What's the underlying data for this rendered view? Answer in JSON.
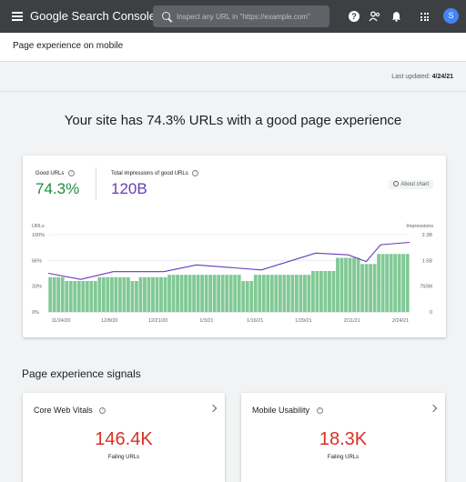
{
  "topbar": {
    "app_title": "Google Search Console",
    "search_placeholder": "Inspect any URL in \"https://example.com\"",
    "avatar_initial": "S",
    "icons": [
      "menu-icon",
      "search-icon",
      "help-icon",
      "users-icon",
      "bell-icon",
      "apps-icon"
    ]
  },
  "page": {
    "title": "Page experience on mobile",
    "last_updated_label": "Last updated:",
    "last_updated_date": "4/24/21",
    "headline": "Your site has 74.3% URLs with a good page experience"
  },
  "metrics": {
    "good_urls_label": "Good URLs",
    "good_urls_value": "74.3%",
    "impressions_label": "Total impressions of good URLs",
    "impressions_value": "120B",
    "about_chart_label": "About chart"
  },
  "chart_data": {
    "type": "bar",
    "left_axis": {
      "title": "URLs",
      "ticks": [
        "100%",
        "66%",
        "33%",
        "0%"
      ],
      "range": [
        0,
        100
      ]
    },
    "right_axis": {
      "title": "Impressions",
      "ticks": [
        "2.3B",
        "1.5B",
        "750M",
        "0"
      ],
      "range": [
        0,
        2.3
      ]
    },
    "x_ticks": [
      "11/24/20",
      "12/8/20",
      "12/21/20",
      "1/3/21",
      "1/16/21",
      "1/29/21",
      "2/11/21",
      "2/24/21"
    ],
    "grid": true,
    "series": [
      {
        "name": "Good URLs",
        "type": "bar",
        "axis": "left",
        "color": "#81c995",
        "values": [
          45,
          45,
          45,
          45,
          40,
          40,
          40,
          40,
          40,
          40,
          40,
          40,
          45,
          45,
          45,
          45,
          45,
          45,
          45,
          45,
          40,
          40,
          45,
          45,
          45,
          45,
          45,
          45,
          45,
          48,
          48,
          48,
          48,
          48,
          48,
          48,
          48,
          48,
          48,
          48,
          48,
          48,
          48,
          48,
          48,
          48,
          48,
          40,
          40,
          40,
          48,
          48,
          48,
          48,
          48,
          48,
          48,
          48,
          48,
          48,
          48,
          48,
          48,
          48,
          53,
          53,
          53,
          53,
          53,
          53,
          70,
          70,
          70,
          70,
          70,
          70,
          62,
          62,
          62,
          62,
          75,
          75,
          75,
          75,
          75,
          75,
          75,
          75
        ]
      },
      {
        "name": "Impressions",
        "type": "line",
        "axis": "right",
        "color": "#673ab7",
        "x_frac": [
          0,
          0.09,
          0.18,
          0.32,
          0.41,
          0.59,
          0.74,
          0.83,
          0.88,
          0.92,
          1.0
        ],
        "values": [
          1.15,
          0.97,
          1.2,
          1.2,
          1.4,
          1.25,
          1.75,
          1.7,
          1.5,
          2.0,
          2.07
        ]
      }
    ]
  },
  "signals": {
    "title": "Page experience signals",
    "cards": [
      {
        "name": "Core Web Vitals",
        "value": "146.4K",
        "sub": "Failing URLs"
      },
      {
        "name": "Mobile Usability",
        "value": "18.3K",
        "sub": "Failing URLs"
      }
    ]
  },
  "colors": {
    "topbar_bg": "#3c4043",
    "good_green": "#1e8e3e",
    "impressions_purple": "#673ab7",
    "failing_red": "#d93025",
    "bar_green": "#81c995"
  }
}
